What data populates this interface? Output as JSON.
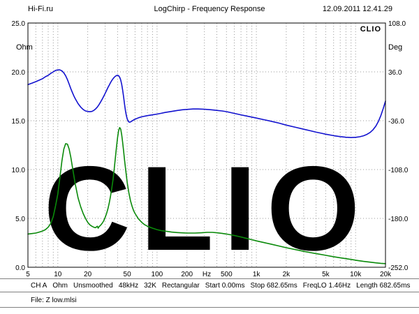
{
  "header": {
    "site": "Hi-Fi.ru",
    "title": "LogChirp - Frequency Response",
    "datetime": "12.09.2011 12.41.29"
  },
  "chart_data": {
    "type": "line",
    "title": "LogChirp - Frequency Response",
    "brand": "CLIO",
    "watermark": "CLIO",
    "x_scale": "log",
    "x_range_hz": [
      5,
      20000
    ],
    "x_tick_labels": [
      {
        "f": 5,
        "label": "5"
      },
      {
        "f": 10,
        "label": "10"
      },
      {
        "f": 20,
        "label": "20"
      },
      {
        "f": 50,
        "label": "50"
      },
      {
        "f": 100,
        "label": "100"
      },
      {
        "f": 200,
        "label": "200"
      },
      {
        "f": null,
        "label": "Hz"
      },
      {
        "f": 500,
        "label": "500"
      },
      {
        "f": 1000,
        "label": "1k"
      },
      {
        "f": 2000,
        "label": "2k"
      },
      {
        "f": 5000,
        "label": "5k"
      },
      {
        "f": 10000,
        "label": "10k"
      },
      {
        "f": 20000,
        "label": "20k"
      }
    ],
    "y_left": {
      "label": "Ohm",
      "min": 0,
      "max": 25,
      "ticks": [
        25,
        20,
        15,
        10,
        5,
        0
      ],
      "tick_labels": [
        "25.0",
        "20.0",
        "15.0",
        "10.0",
        "5.0",
        "0.0"
      ]
    },
    "y_right": {
      "label": "Deg",
      "tick_labels": [
        "108.0",
        "36.0",
        "-36.0",
        "-108.0",
        "-180.0",
        "-252.0"
      ]
    },
    "grid": "log-dashed",
    "series": [
      {
        "name": "impedance-magnitude",
        "color": "#0a8a0a",
        "axis": "left",
        "points": [
          [
            5,
            3.4
          ],
          [
            5.5,
            3.45
          ],
          [
            6,
            3.5
          ],
          [
            6.5,
            3.6
          ],
          [
            7,
            3.7
          ],
          [
            7.5,
            3.85
          ],
          [
            8,
            4.1
          ],
          [
            8.5,
            4.5
          ],
          [
            9,
            5.2
          ],
          [
            9.5,
            6.3
          ],
          [
            10,
            7.5
          ],
          [
            10.5,
            9.2
          ],
          [
            11,
            10.9
          ],
          [
            11.5,
            12.1
          ],
          [
            12,
            12.65
          ],
          [
            12.5,
            12.6
          ],
          [
            13,
            12.1
          ],
          [
            13.5,
            11.3
          ],
          [
            14,
            10.3
          ],
          [
            15,
            8.5
          ],
          [
            16,
            7.1
          ],
          [
            17,
            6.2
          ],
          [
            18,
            5.5
          ],
          [
            19,
            5.0
          ],
          [
            20,
            4.6
          ],
          [
            21,
            4.35
          ],
          [
            22,
            4.2
          ],
          [
            23,
            4.1
          ],
          [
            24,
            4.05
          ],
          [
            25,
            4.2
          ],
          [
            25.5,
            4.0
          ],
          [
            26,
            4.15
          ],
          [
            27,
            4.3
          ],
          [
            28,
            4.5
          ],
          [
            29,
            4.75
          ],
          [
            30,
            5.1
          ],
          [
            31,
            5.5
          ],
          [
            32,
            6.0
          ],
          [
            33,
            6.6
          ],
          [
            34,
            7.3
          ],
          [
            35,
            8.1
          ],
          [
            36,
            9.0
          ],
          [
            37,
            10.1
          ],
          [
            38,
            11.2
          ],
          [
            39,
            12.3
          ],
          [
            40,
            13.3
          ],
          [
            41,
            14.0
          ],
          [
            42,
            14.3
          ],
          [
            43,
            14.15
          ],
          [
            44,
            13.6
          ],
          [
            45,
            12.8
          ],
          [
            46,
            11.9
          ],
          [
            47,
            11.0
          ],
          [
            48,
            10.2
          ],
          [
            50,
            8.7
          ],
          [
            52,
            7.6
          ],
          [
            54,
            6.8
          ],
          [
            56,
            6.25
          ],
          [
            58,
            5.8
          ],
          [
            60,
            5.5
          ],
          [
            65,
            4.95
          ],
          [
            70,
            4.6
          ],
          [
            75,
            4.35
          ],
          [
            80,
            4.2
          ],
          [
            90,
            4.0
          ],
          [
            100,
            3.85
          ],
          [
            110,
            3.75
          ],
          [
            120,
            3.7
          ],
          [
            140,
            3.6
          ],
          [
            160,
            3.55
          ],
          [
            180,
            3.52
          ],
          [
            200,
            3.5
          ],
          [
            240,
            3.5
          ],
          [
            280,
            3.53
          ],
          [
            320,
            3.57
          ],
          [
            360,
            3.57
          ],
          [
            400,
            3.53
          ],
          [
            450,
            3.47
          ],
          [
            500,
            3.4
          ],
          [
            600,
            3.25
          ],
          [
            700,
            3.1
          ],
          [
            800,
            2.95
          ],
          [
            900,
            2.82
          ],
          [
            1000,
            2.7
          ],
          [
            1200,
            2.52
          ],
          [
            1400,
            2.37
          ],
          [
            1700,
            2.17
          ],
          [
            2000,
            2.0
          ],
          [
            2500,
            1.8
          ],
          [
            3000,
            1.63
          ],
          [
            3500,
            1.5
          ],
          [
            4000,
            1.4
          ],
          [
            5000,
            1.22
          ],
          [
            6000,
            1.08
          ],
          [
            7000,
            0.97
          ],
          [
            8000,
            0.88
          ],
          [
            9000,
            0.8
          ],
          [
            10000,
            0.72
          ],
          [
            12000,
            0.6
          ],
          [
            14000,
            0.52
          ],
          [
            16000,
            0.45
          ],
          [
            18000,
            0.4
          ],
          [
            20000,
            0.37
          ]
        ]
      },
      {
        "name": "phase",
        "color": "#1212cf",
        "axis": "right",
        "points": [
          [
            5,
            18.7
          ],
          [
            5.5,
            18.85
          ],
          [
            6,
            19.0
          ],
          [
            6.5,
            19.15
          ],
          [
            7,
            19.3
          ],
          [
            7.5,
            19.5
          ],
          [
            8,
            19.65
          ],
          [
            8.5,
            19.85
          ],
          [
            9,
            20.0
          ],
          [
            9.5,
            20.15
          ],
          [
            10,
            20.2
          ],
          [
            10.5,
            20.2
          ],
          [
            11,
            20.1
          ],
          [
            11.5,
            19.9
          ],
          [
            12,
            19.6
          ],
          [
            12.5,
            19.2
          ],
          [
            13,
            18.75
          ],
          [
            13.5,
            18.3
          ],
          [
            14,
            17.9
          ],
          [
            14.5,
            17.55
          ],
          [
            15,
            17.25
          ],
          [
            16,
            16.75
          ],
          [
            17,
            16.4
          ],
          [
            18,
            16.15
          ],
          [
            19,
            16.0
          ],
          [
            20,
            15.95
          ],
          [
            21,
            15.92
          ],
          [
            22,
            15.95
          ],
          [
            23,
            16.05
          ],
          [
            24,
            16.2
          ],
          [
            25,
            16.4
          ],
          [
            26,
            16.65
          ],
          [
            27,
            16.92
          ],
          [
            28,
            17.2
          ],
          [
            29,
            17.5
          ],
          [
            30,
            17.8
          ],
          [
            31,
            18.1
          ],
          [
            32,
            18.4
          ],
          [
            33,
            18.65
          ],
          [
            34,
            18.9
          ],
          [
            35,
            19.12
          ],
          [
            36,
            19.3
          ],
          [
            37,
            19.45
          ],
          [
            38,
            19.55
          ],
          [
            39,
            19.62
          ],
          [
            40,
            19.65
          ],
          [
            41,
            19.6
          ],
          [
            42,
            19.45
          ],
          [
            43,
            19.18
          ],
          [
            44,
            18.75
          ],
          [
            45,
            18.15
          ],
          [
            46,
            17.45
          ],
          [
            47,
            16.7
          ],
          [
            48,
            16.05
          ],
          [
            49,
            15.55
          ],
          [
            50,
            15.2
          ],
          [
            51,
            14.98
          ],
          [
            52,
            14.87
          ],
          [
            53,
            14.85
          ],
          [
            54,
            14.88
          ],
          [
            56,
            14.98
          ],
          [
            58,
            15.08
          ],
          [
            60,
            15.15
          ],
          [
            65,
            15.3
          ],
          [
            70,
            15.4
          ],
          [
            80,
            15.52
          ],
          [
            90,
            15.6
          ],
          [
            100,
            15.68
          ],
          [
            110,
            15.76
          ],
          [
            120,
            15.84
          ],
          [
            140,
            15.95
          ],
          [
            160,
            16.05
          ],
          [
            180,
            16.12
          ],
          [
            200,
            16.16
          ],
          [
            230,
            16.2
          ],
          [
            260,
            16.2
          ],
          [
            300,
            16.17
          ],
          [
            350,
            16.12
          ],
          [
            400,
            16.06
          ],
          [
            450,
            16.0
          ],
          [
            500,
            15.93
          ],
          [
            600,
            15.75
          ],
          [
            700,
            15.6
          ],
          [
            800,
            15.48
          ],
          [
            900,
            15.37
          ],
          [
            1000,
            15.27
          ],
          [
            1200,
            15.1
          ],
          [
            1400,
            14.95
          ],
          [
            1700,
            14.75
          ],
          [
            2000,
            14.55
          ],
          [
            2500,
            14.32
          ],
          [
            3000,
            14.13
          ],
          [
            3500,
            13.97
          ],
          [
            4000,
            13.83
          ],
          [
            4500,
            13.72
          ],
          [
            5000,
            13.62
          ],
          [
            6000,
            13.47
          ],
          [
            7000,
            13.37
          ],
          [
            8000,
            13.31
          ],
          [
            9000,
            13.28
          ],
          [
            10000,
            13.3
          ],
          [
            11000,
            13.36
          ],
          [
            12000,
            13.46
          ],
          [
            13000,
            13.6
          ],
          [
            14000,
            13.8
          ],
          [
            15000,
            14.08
          ],
          [
            16000,
            14.45
          ],
          [
            17000,
            14.95
          ],
          [
            18000,
            15.55
          ],
          [
            19000,
            16.25
          ],
          [
            20000,
            17.0
          ]
        ]
      }
    ]
  },
  "status_bar": {
    "items": [
      "CH A",
      "Ohm",
      "Unsmoothed",
      "48kHz",
      "32K",
      "Rectangular",
      "Start 0.00ms",
      "Stop 682.65ms",
      "FreqLO 1.46Hz",
      "Length 682.65ms"
    ]
  },
  "file_bar": {
    "label": "File: Z low.mlsi"
  }
}
